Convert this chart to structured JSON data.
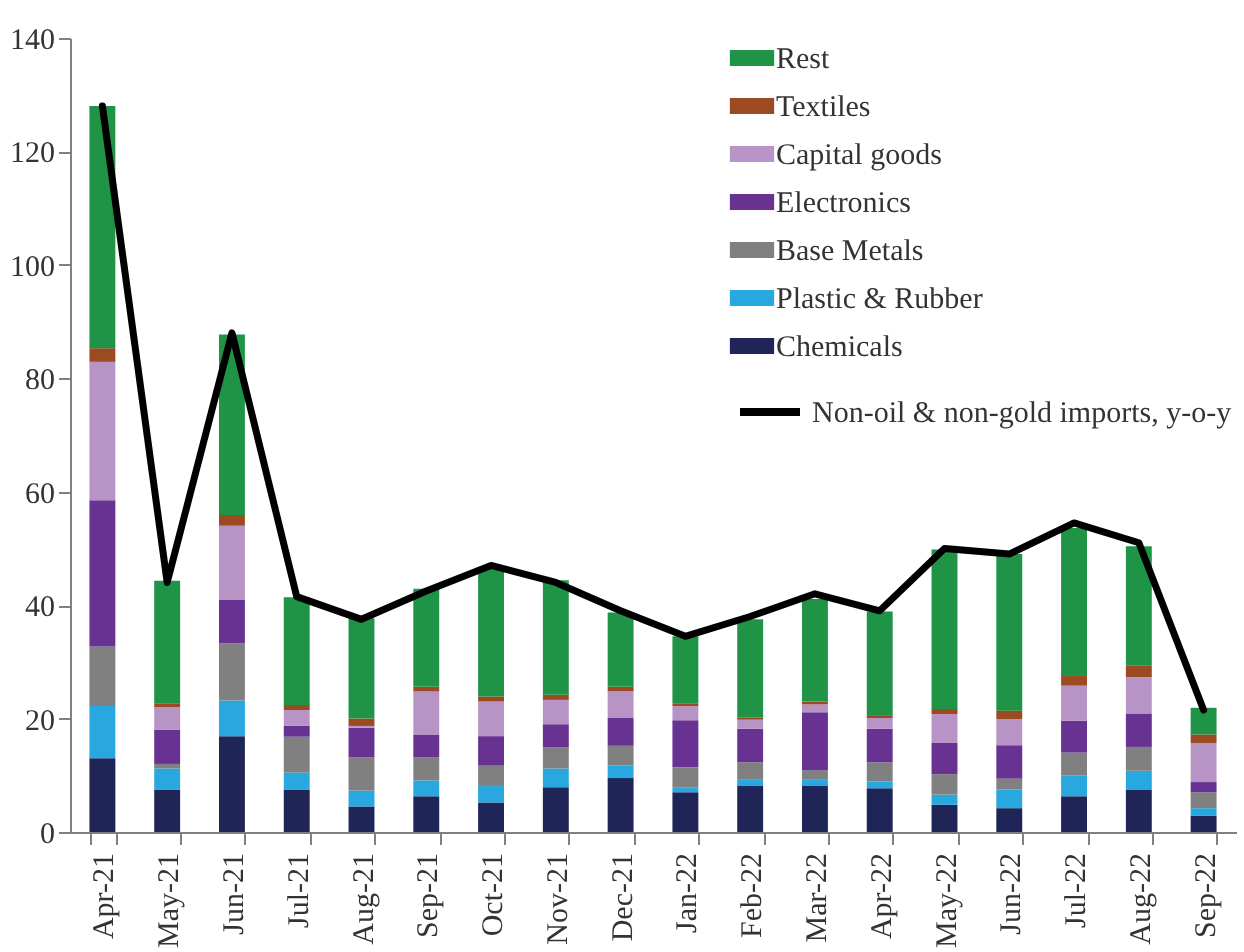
{
  "chart_data": {
    "type": "bar",
    "stacked": true,
    "categories": [
      "Apr-21",
      "May-21",
      "Jun-21",
      "Jul-21",
      "Aug-21",
      "Sep-21",
      "Oct-21",
      "Nov-21",
      "Dec-21",
      "Jan-22",
      "Feb-22",
      "Mar-22",
      "Apr-22",
      "May-22",
      "Jun-22",
      "Jul-22",
      "Aug-22",
      "Sep-22"
    ],
    "series": [
      {
        "name": "Chemicals",
        "color": "#1f2556",
        "values": [
          13,
          7.5,
          16.9,
          7.5,
          4.5,
          6.3,
          5.2,
          7.9,
          9.5,
          7,
          8.1,
          8.1,
          7.7,
          4.8,
          4.2,
          6.3,
          7.4,
          2.9
        ]
      },
      {
        "name": "Plastic & Rubber",
        "color": "#29a8e0",
        "values": [
          9.2,
          3.7,
          6.3,
          3,
          2.8,
          2.8,
          2.9,
          3.3,
          2.2,
          0.9,
          1.1,
          1.1,
          1.2,
          1.8,
          3.3,
          3.7,
          3.4,
          1.3
        ]
      },
      {
        "name": "Base Metals",
        "color": "#808080",
        "values": [
          10.5,
          0.8,
          10.1,
          6.3,
          5.9,
          4.1,
          3.6,
          3.7,
          3.5,
          3.5,
          3.1,
          1.7,
          3.4,
          3.6,
          1.9,
          4,
          4.2,
          2.8
        ]
      },
      {
        "name": "Electronics",
        "color": "#673291",
        "values": [
          25.8,
          6,
          7.6,
          1.9,
          5.2,
          4,
          5.2,
          4.1,
          4.9,
          8.3,
          5.9,
          10.2,
          5.9,
          5.5,
          5.9,
          5.6,
          5.9,
          1.8
        ]
      },
      {
        "name": "Capital goods",
        "color": "#b894c6",
        "values": [
          24.4,
          4,
          13.1,
          2.8,
          0.3,
          7.6,
          6.1,
          4.3,
          4.7,
          2.5,
          1.6,
          1.4,
          1.9,
          5.1,
          4.6,
          6.2,
          6.4,
          6.9
        ]
      },
      {
        "name": "Textiles",
        "color": "#9c4a22",
        "values": [
          2.4,
          0.7,
          1.9,
          0.9,
          1.3,
          0.8,
          0.9,
          0.9,
          0.8,
          0.5,
          0.4,
          0.5,
          0.5,
          0.9,
          1.5,
          1.7,
          2.1,
          1.5
        ]
      },
      {
        "name": "Rest",
        "color": "#1f9446",
        "values": [
          42.7,
          21.6,
          31.8,
          19,
          17.7,
          17.3,
          22.7,
          20.2,
          13.1,
          11.8,
          17.3,
          18.1,
          18.3,
          28.1,
          27.6,
          26.1,
          21,
          4.7
        ]
      },
      {
        "name": "Non-oil & non-gold imports, y-o-y",
        "type": "line",
        "color": "#000000",
        "values": [
          128,
          44,
          88,
          41.5,
          37.5,
          42.5,
          47,
          44,
          39,
          34.5,
          38,
          42,
          39,
          50,
          49,
          54.5,
          51,
          21.5
        ]
      }
    ],
    "ylim": [
      0,
      140
    ],
    "yticks": [
      0,
      20,
      40,
      60,
      80,
      100,
      120,
      140
    ],
    "legend": "top right"
  }
}
